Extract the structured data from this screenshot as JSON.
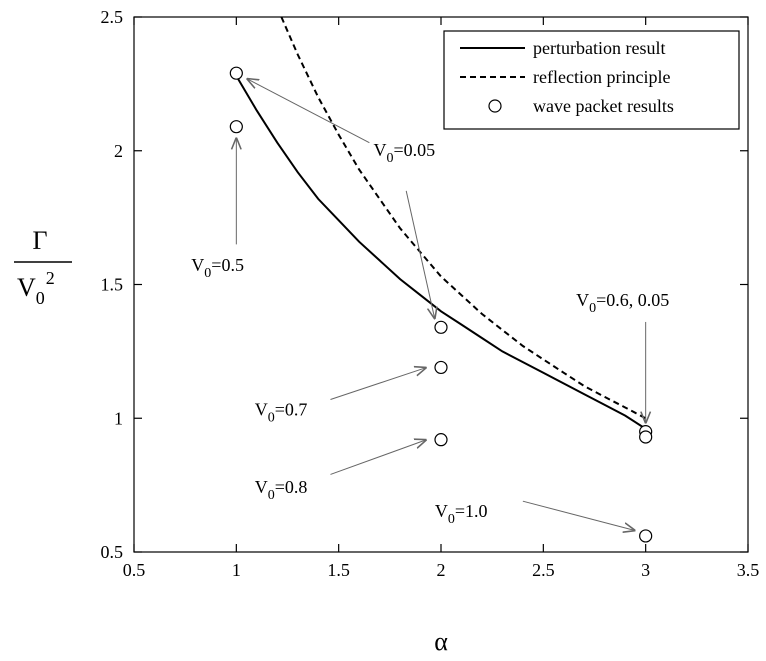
{
  "chart_data": {
    "type": "line",
    "xlabel": "α",
    "ylabel": {
      "numerator": "Γ",
      "denominator_base": "V",
      "denominator_sub": "0",
      "denominator_sup": "2"
    },
    "xlim": [
      0.5,
      3.5
    ],
    "ylim": [
      0.5,
      2.5
    ],
    "xticks": [
      "0.5",
      "1",
      "1.5",
      "2",
      "2.5",
      "3",
      "3.5"
    ],
    "yticks": [
      "0.5",
      "1",
      "1.5",
      "2",
      "2.5"
    ],
    "grid": false,
    "legend_position": "top-right",
    "series": [
      {
        "name": "perturbation result",
        "style": "solid",
        "x": [
          1.0,
          1.1,
          1.2,
          1.3,
          1.4,
          1.5,
          1.6,
          1.7,
          1.8,
          1.9,
          2.0,
          2.1,
          2.2,
          2.3,
          2.4,
          2.5,
          2.6,
          2.7,
          2.8,
          2.9,
          3.0
        ],
        "y": [
          2.28,
          2.15,
          2.03,
          1.92,
          1.82,
          1.74,
          1.66,
          1.59,
          1.52,
          1.46,
          1.4,
          1.35,
          1.3,
          1.25,
          1.21,
          1.17,
          1.13,
          1.09,
          1.05,
          1.01,
          0.96
        ]
      },
      {
        "name": "reflection principle",
        "style": "dashed",
        "x": [
          1.22,
          1.3,
          1.4,
          1.5,
          1.6,
          1.7,
          1.8,
          1.9,
          2.0,
          2.1,
          2.2,
          2.3,
          2.4,
          2.5,
          2.6,
          2.7,
          2.8,
          2.9,
          3.0
        ],
        "y": [
          2.5,
          2.36,
          2.2,
          2.06,
          1.93,
          1.82,
          1.71,
          1.62,
          1.53,
          1.46,
          1.39,
          1.33,
          1.27,
          1.22,
          1.17,
          1.12,
          1.08,
          1.04,
          1.0
        ]
      },
      {
        "name": "wave packet results",
        "style": "markers",
        "x": [
          1.0,
          1.0,
          2.0,
          2.0,
          2.0,
          3.0,
          3.0,
          3.0
        ],
        "y": [
          2.29,
          2.09,
          1.34,
          1.19,
          0.92,
          0.95,
          0.93,
          0.56
        ]
      }
    ],
    "annotations": [
      {
        "base": "V",
        "sub": "0",
        "rest": "=0.05",
        "label_x": 1.67,
        "label_y": 1.98,
        "arrows": [
          [
            1.65,
            2.03,
            1.05,
            2.27
          ],
          [
            1.83,
            1.85,
            1.97,
            1.37
          ]
        ]
      },
      {
        "base": "V",
        "sub": "0",
        "rest": "=0.5",
        "label_x": 0.78,
        "label_y": 1.55,
        "arrows": [
          [
            1.0,
            1.65,
            1.0,
            2.05
          ]
        ]
      },
      {
        "base": "V",
        "sub": "0",
        "rest": "=0.6, 0.05",
        "label_x": 2.66,
        "label_y": 1.42,
        "arrows": [
          [
            3.0,
            1.36,
            3.0,
            0.98
          ]
        ]
      },
      {
        "base": "V",
        "sub": "0",
        "rest": "=0.7",
        "label_x": 1.09,
        "label_y": 1.01,
        "arrows": [
          [
            1.46,
            1.07,
            1.93,
            1.19
          ]
        ]
      },
      {
        "base": "V",
        "sub": "0",
        "rest": "=0.8",
        "label_x": 1.09,
        "label_y": 0.72,
        "arrows": [
          [
            1.46,
            0.79,
            1.93,
            0.92
          ]
        ]
      },
      {
        "base": "V",
        "sub": "0",
        "rest": "=1.0",
        "label_x": 1.97,
        "label_y": 0.63,
        "arrows": [
          [
            2.4,
            0.69,
            2.95,
            0.58
          ]
        ]
      }
    ]
  }
}
